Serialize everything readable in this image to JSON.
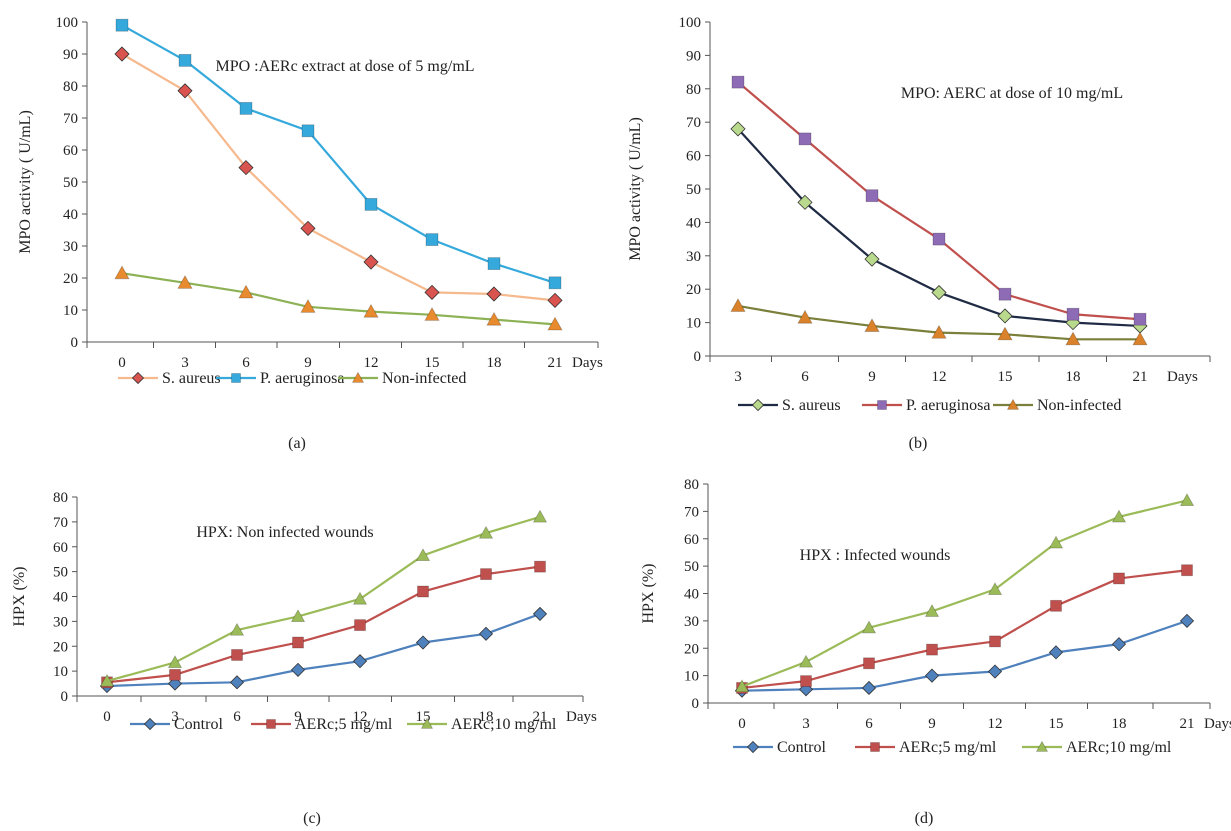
{
  "chart_data": [
    {
      "type": "line",
      "panel_label": "(a)",
      "title": "MPO :AERc extract at dose of 5 mg/mL",
      "xlabel": "Days",
      "ylabel": "MPO activity ( U/mL)",
      "categories": [
        "0",
        "3",
        "6",
        "9",
        "12",
        "15",
        "18",
        "21"
      ],
      "ylim": [
        0,
        100
      ],
      "yticks": [
        0,
        10,
        20,
        30,
        40,
        50,
        60,
        70,
        80,
        90,
        100
      ],
      "grid": false,
      "legend_position": "bottom",
      "series": [
        {
          "name": "S. aureus",
          "values": [
            90,
            78.5,
            54.5,
            35.5,
            25,
            15.5,
            15,
            13
          ],
          "color": "#f5b98d",
          "marker": "diamond",
          "marker_color": "#d9534f"
        },
        {
          "name": "P. aeruginosa",
          "values": [
            99,
            88,
            73,
            66,
            43,
            32,
            24.5,
            18.5
          ],
          "color": "#35a9dc",
          "marker": "square",
          "marker_color": "#35a9dc"
        },
        {
          "name": "Non-infected",
          "values": [
            21.5,
            18.5,
            15.5,
            11,
            9.5,
            8.5,
            7,
            5.5
          ],
          "color": "#8db255",
          "marker": "triangle",
          "marker_color": "#e88a2e"
        }
      ]
    },
    {
      "type": "line",
      "panel_label": "(b)",
      "title": "MPO: AERC at dose of 10 mg/mL",
      "xlabel": "Days",
      "ylabel": "MPO activity ( U/mL)",
      "categories": [
        "3",
        "6",
        "9",
        "12",
        "15",
        "18",
        "21"
      ],
      "ylim": [
        0,
        100
      ],
      "yticks": [
        0,
        10,
        20,
        30,
        40,
        50,
        60,
        70,
        80,
        90,
        100
      ],
      "grid": false,
      "legend_position": "bottom",
      "series": [
        {
          "name": "S. aureus",
          "values": [
            68,
            46,
            29,
            19,
            12,
            10,
            9
          ],
          "color": "#1f2a44",
          "marker": "diamond",
          "marker_color": "#b9d98c"
        },
        {
          "name": "P. aeruginosa",
          "values": [
            82,
            65,
            48,
            35,
            18.5,
            12.5,
            11
          ],
          "color": "#c0504d",
          "marker": "square",
          "marker_color": "#8e6bb5"
        },
        {
          "name": "Non-infected",
          "values": [
            15,
            11.5,
            9,
            7,
            6.5,
            5,
            5
          ],
          "color": "#7a7f3a",
          "marker": "triangle",
          "marker_color": "#d9822b"
        }
      ]
    },
    {
      "type": "line",
      "panel_label": "(c)",
      "title": "HPX: Non infected wounds",
      "xlabel": "Days",
      "ylabel": "HPX (%)",
      "categories": [
        "0",
        "3",
        "6",
        "9",
        "12",
        "15",
        "18",
        "21"
      ],
      "ylim": [
        0,
        80
      ],
      "yticks": [
        0,
        10,
        20,
        30,
        40,
        50,
        60,
        70,
        80
      ],
      "grid": false,
      "legend_position": "bottom",
      "series": [
        {
          "name": "Control",
          "values": [
            4,
            5,
            5.5,
            10.5,
            14,
            21.5,
            25,
            33
          ],
          "color": "#4f81bd",
          "marker": "diamond",
          "marker_color": "#4f81bd"
        },
        {
          "name": "AERc;5 mg/ml",
          "values": [
            5.5,
            8.5,
            16.5,
            21.5,
            28.5,
            42,
            49,
            52
          ],
          "color": "#c0504d",
          "marker": "square",
          "marker_color": "#c0504d"
        },
        {
          "name": "AERc;10 mg/ml",
          "values": [
            6,
            13.5,
            26.5,
            32,
            39,
            56.5,
            65.5,
            72
          ],
          "color": "#9bbb59",
          "marker": "triangle",
          "marker_color": "#9bbb59"
        }
      ]
    },
    {
      "type": "line",
      "panel_label": "(d)",
      "title": "HPX : Infected wounds",
      "xlabel": "Days",
      "ylabel": "HPX (%)",
      "categories": [
        "0",
        "3",
        "6",
        "9",
        "12",
        "15",
        "18",
        "21"
      ],
      "ylim": [
        0,
        80
      ],
      "yticks": [
        0,
        10,
        20,
        30,
        40,
        50,
        60,
        70,
        80
      ],
      "grid": false,
      "legend_position": "bottom",
      "series": [
        {
          "name": "Control",
          "values": [
            4.5,
            5,
            5.5,
            10,
            11.5,
            18.5,
            21.5,
            30
          ],
          "color": "#4f81bd",
          "marker": "diamond",
          "marker_color": "#4f81bd"
        },
        {
          "name": "AERc;5 mg/ml",
          "values": [
            5.5,
            8,
            14.5,
            19.5,
            22.5,
            35.5,
            45.5,
            48.5
          ],
          "color": "#c0504d",
          "marker": "square",
          "marker_color": "#c0504d"
        },
        {
          "name": "AERc;10 mg/ml",
          "values": [
            6,
            15,
            27.5,
            33.5,
            41.5,
            58.5,
            68,
            74
          ],
          "color": "#9bbb59",
          "marker": "triangle",
          "marker_color": "#9bbb59"
        }
      ]
    }
  ]
}
